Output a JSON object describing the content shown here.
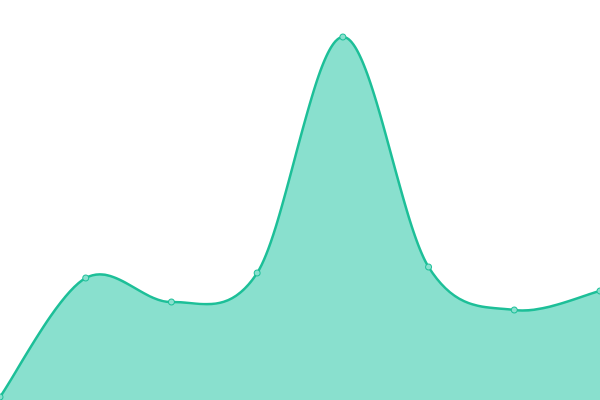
{
  "chart_data": {
    "type": "area",
    "title": "",
    "xlabel": "",
    "ylabel": "",
    "x": [
      0,
      1,
      2,
      3,
      4,
      5,
      6,
      7
    ],
    "series": [
      {
        "values": [
          3,
          122,
          98,
          127,
          363,
          133,
          90,
          109
        ]
      }
    ],
    "xlim": [
      0,
      7
    ],
    "ylim": [
      0,
      400
    ],
    "grid": false,
    "axes_visible": false,
    "smooth": true,
    "colors": {
      "line": "#1dbf98",
      "fill": "#89e0ce",
      "marker_fill": "#89e0ce"
    }
  }
}
